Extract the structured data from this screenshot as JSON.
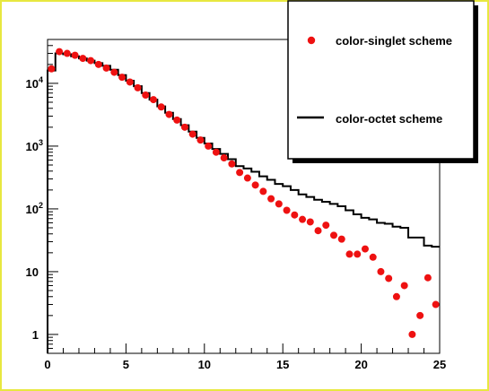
{
  "chart_data": {
    "type": "scatter",
    "title": "",
    "xlabel": "",
    "ylabel": "",
    "xlim": [
      0,
      25
    ],
    "ylim": [
      0.5,
      50000
    ],
    "yscale": "log",
    "grid": false,
    "legend_position": "top-right",
    "x_ticks": [
      {
        "value": 0,
        "label": "0"
      },
      {
        "value": 5,
        "label": "5"
      },
      {
        "value": 10,
        "label": "10"
      },
      {
        "value": 15,
        "label": "15"
      },
      {
        "value": 20,
        "label": "20"
      },
      {
        "value": 25,
        "label": "25"
      }
    ],
    "y_ticks": [
      {
        "value": 1,
        "base": "1",
        "exp": ""
      },
      {
        "value": 10,
        "base": "10",
        "exp": ""
      },
      {
        "value": 100,
        "base": "10",
        "exp": "2"
      },
      {
        "value": 1000,
        "base": "10",
        "exp": "3"
      },
      {
        "value": 10000,
        "base": "10",
        "exp": "4"
      }
    ],
    "series": [
      {
        "name": "color-singlet scheme",
        "style": "markers",
        "color": "#ee1111",
        "x": [
          0.25,
          0.75,
          1.25,
          1.75,
          2.25,
          2.75,
          3.25,
          3.75,
          4.25,
          4.75,
          5.25,
          5.75,
          6.25,
          6.75,
          7.25,
          7.75,
          8.25,
          8.75,
          9.25,
          9.75,
          10.25,
          10.75,
          11.25,
          11.75,
          12.25,
          12.75,
          13.25,
          13.75,
          14.25,
          14.75,
          15.25,
          15.75,
          16.25,
          16.75,
          17.25,
          17.75,
          18.25,
          18.75,
          19.25,
          19.75,
          20.25,
          20.75,
          21.25,
          21.75,
          22.25,
          22.75,
          23.25,
          23.75,
          24.25,
          24.75
        ],
        "y": [
          17000,
          32000,
          30000,
          28000,
          25000,
          23000,
          20000,
          17500,
          15000,
          12500,
          10500,
          8500,
          6500,
          5500,
          4200,
          3200,
          2600,
          2000,
          1550,
          1250,
          1000,
          800,
          650,
          520,
          380,
          310,
          240,
          190,
          145,
          120,
          95,
          80,
          68,
          62,
          45,
          55,
          38,
          33,
          19,
          19,
          23,
          17,
          10,
          7.8,
          4,
          6,
          1,
          2,
          8,
          3
        ]
      },
      {
        "name": "color-octet scheme",
        "style": "step",
        "color": "#000000",
        "edges": [
          0,
          0.5,
          1,
          1.5,
          2,
          2.5,
          3,
          3.5,
          4,
          4.5,
          5,
          5.5,
          6,
          6.5,
          7,
          7.5,
          8,
          8.5,
          9,
          9.5,
          10,
          10.5,
          11,
          11.5,
          12,
          12.5,
          13,
          13.5,
          14,
          14.5,
          15,
          15.5,
          16,
          16.5,
          17,
          17.5,
          18,
          18.5,
          19,
          19.5,
          20,
          20.5,
          21,
          21.5,
          22,
          22.5,
          23,
          23.5,
          24,
          24.5,
          25
        ],
        "values": [
          16000,
          30000,
          29000,
          27000,
          25000,
          23000,
          21000,
          19000,
          16500,
          13500,
          11000,
          9000,
          7000,
          5500,
          4300,
          3400,
          2700,
          2150,
          1700,
          1350,
          1100,
          900,
          750,
          620,
          480,
          440,
          390,
          330,
          290,
          250,
          230,
          200,
          170,
          155,
          140,
          130,
          120,
          110,
          95,
          82,
          72,
          68,
          60,
          58,
          52,
          50,
          35,
          35,
          26,
          25
        ]
      }
    ]
  }
}
